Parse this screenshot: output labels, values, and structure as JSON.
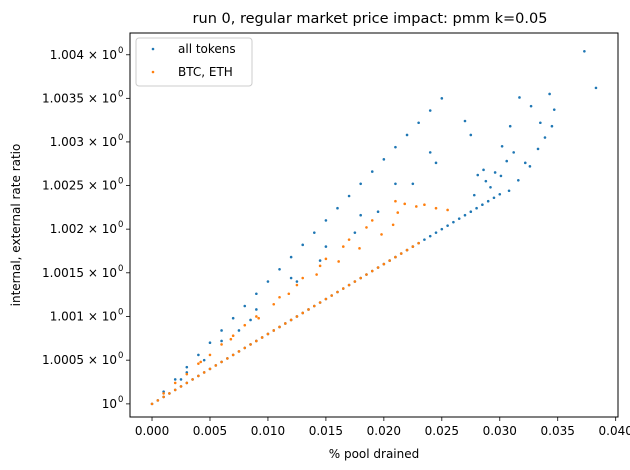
{
  "chart_data": {
    "type": "scatter",
    "title": "run 0, regular market price impact: pmm k=0.05",
    "xlabel": "% pool drained",
    "ylabel": "internal, external rate ratio",
    "xlim": [
      -0.0019,
      0.0402
    ],
    "ylim": [
      0.99985,
      1.00425
    ],
    "yscale": "log",
    "x_ticks": [
      {
        "value": 0.0,
        "label": "0.000"
      },
      {
        "value": 0.005,
        "label": "0.005"
      },
      {
        "value": 0.01,
        "label": "0.010"
      },
      {
        "value": 0.015,
        "label": "0.015"
      },
      {
        "value": 0.02,
        "label": "0.020"
      },
      {
        "value": 0.025,
        "label": "0.025"
      },
      {
        "value": 0.03,
        "label": "0.030"
      },
      {
        "value": 0.035,
        "label": "0.035"
      },
      {
        "value": 0.04,
        "label": "0.040"
      }
    ],
    "y_ticks": [
      {
        "value": 1.0,
        "mantissa": "10",
        "exp": "0"
      },
      {
        "value": 1.0005,
        "mantissa": "1.0005 × 10",
        "exp": "0"
      },
      {
        "value": 1.001,
        "mantissa": "1.001 × 10",
        "exp": "0"
      },
      {
        "value": 1.0015,
        "mantissa": "1.0015 × 10",
        "exp": "0"
      },
      {
        "value": 1.002,
        "mantissa": "1.002 × 10",
        "exp": "0"
      },
      {
        "value": 1.0025,
        "mantissa": "1.0025 × 10",
        "exp": "0"
      },
      {
        "value": 1.003,
        "mantissa": "1.003 × 10",
        "exp": "0"
      },
      {
        "value": 1.0035,
        "mantissa": "1.0035 × 10",
        "exp": "0"
      },
      {
        "value": 1.004,
        "mantissa": "1.004 × 10",
        "exp": "0"
      }
    ],
    "grid": false,
    "legend_position": "top-left",
    "series": [
      {
        "name": "all tokens",
        "color": "#1f77b4",
        "points": [
          [
            0.0,
            1.0
          ],
          [
            0.0005,
            1.00004
          ],
          [
            0.001,
            1.00008
          ],
          [
            0.0015,
            1.00012
          ],
          [
            0.002,
            1.00016
          ],
          [
            0.0025,
            1.0002
          ],
          [
            0.003,
            1.00024
          ],
          [
            0.0035,
            1.00028
          ],
          [
            0.004,
            1.00032
          ],
          [
            0.0045,
            1.00036
          ],
          [
            0.005,
            1.0004
          ],
          [
            0.0055,
            1.00044
          ],
          [
            0.006,
            1.00048
          ],
          [
            0.0065,
            1.00052
          ],
          [
            0.007,
            1.00056
          ],
          [
            0.0075,
            1.0006
          ],
          [
            0.008,
            1.00064
          ],
          [
            0.0085,
            1.00068
          ],
          [
            0.009,
            1.00072
          ],
          [
            0.0095,
            1.00076
          ],
          [
            0.01,
            1.0008
          ],
          [
            0.0105,
            1.00084
          ],
          [
            0.011,
            1.00088
          ],
          [
            0.0115,
            1.00092
          ],
          [
            0.012,
            1.00096
          ],
          [
            0.0125,
            1.001
          ],
          [
            0.013,
            1.00104
          ],
          [
            0.0135,
            1.00108
          ],
          [
            0.014,
            1.00112
          ],
          [
            0.0145,
            1.00116
          ],
          [
            0.015,
            1.0012
          ],
          [
            0.0155,
            1.00124
          ],
          [
            0.016,
            1.00128
          ],
          [
            0.0165,
            1.00132
          ],
          [
            0.017,
            1.00136
          ],
          [
            0.0175,
            1.0014
          ],
          [
            0.018,
            1.00144
          ],
          [
            0.0185,
            1.00148
          ],
          [
            0.019,
            1.00152
          ],
          [
            0.0195,
            1.00156
          ],
          [
            0.02,
            1.0016
          ],
          [
            0.0205,
            1.00164
          ],
          [
            0.021,
            1.00168
          ],
          [
            0.0215,
            1.00172
          ],
          [
            0.022,
            1.00176
          ],
          [
            0.0225,
            1.0018
          ],
          [
            0.023,
            1.00184
          ],
          [
            0.0235,
            1.00188
          ],
          [
            0.024,
            1.00192
          ],
          [
            0.0245,
            1.00196
          ],
          [
            0.025,
            1.002
          ],
          [
            0.0255,
            1.00204
          ],
          [
            0.026,
            1.00208
          ],
          [
            0.0265,
            1.00212
          ],
          [
            0.027,
            1.00216
          ],
          [
            0.0275,
            1.0022
          ],
          [
            0.028,
            1.00224
          ],
          [
            0.0285,
            1.00228
          ],
          [
            0.029,
            1.00232
          ],
          [
            0.0295,
            1.00236
          ],
          [
            0.03,
            1.0024
          ],
          [
            0.001,
            1.00014
          ],
          [
            0.002,
            1.00028
          ],
          [
            0.003,
            1.00042
          ],
          [
            0.004,
            1.00056
          ],
          [
            0.005,
            1.0007
          ],
          [
            0.006,
            1.00084
          ],
          [
            0.007,
            1.00098
          ],
          [
            0.008,
            1.00112
          ],
          [
            0.009,
            1.00126
          ],
          [
            0.01,
            1.0014
          ],
          [
            0.011,
            1.00154
          ],
          [
            0.012,
            1.00168
          ],
          [
            0.013,
            1.00182
          ],
          [
            0.014,
            1.00196
          ],
          [
            0.015,
            1.0021
          ],
          [
            0.016,
            1.00224
          ],
          [
            0.017,
            1.00238
          ],
          [
            0.018,
            1.00252
          ],
          [
            0.019,
            1.00266
          ],
          [
            0.02,
            1.0028
          ],
          [
            0.021,
            1.00294
          ],
          [
            0.022,
            1.00308
          ],
          [
            0.023,
            1.00322
          ],
          [
            0.024,
            1.00336
          ],
          [
            0.025,
            1.0035
          ],
          [
            0.003,
            1.00036
          ],
          [
            0.006,
            1.00072
          ],
          [
            0.009,
            1.00108
          ],
          [
            0.012,
            1.00144
          ],
          [
            0.015,
            1.0018
          ],
          [
            0.018,
            1.00216
          ],
          [
            0.021,
            1.00252
          ],
          [
            0.024,
            1.00288
          ],
          [
            0.027,
            1.00324
          ],
          [
            0.0025,
            1.00028
          ],
          [
            0.0075,
            1.00084
          ],
          [
            0.0125,
            1.0014
          ],
          [
            0.0175,
            1.00196
          ],
          [
            0.0225,
            1.00252
          ],
          [
            0.0275,
            1.00308
          ],
          [
            0.0045,
            1.0005
          ],
          [
            0.0085,
            1.00096
          ],
          [
            0.0145,
            1.00164
          ],
          [
            0.0195,
            1.0022
          ],
          [
            0.0245,
            1.00276
          ],
          [
            0.0373,
            1.00404
          ],
          [
            0.0383,
            1.00362
          ],
          [
            0.0347,
            1.00337
          ],
          [
            0.0343,
            1.00355
          ],
          [
            0.0317,
            1.00351
          ],
          [
            0.0327,
            1.00341
          ],
          [
            0.0335,
            1.00322
          ],
          [
            0.0345,
            1.00318
          ],
          [
            0.0309,
            1.00318
          ],
          [
            0.0302,
            1.00295
          ],
          [
            0.0312,
            1.00288
          ],
          [
            0.0322,
            1.00276
          ],
          [
            0.0326,
            1.00272
          ],
          [
            0.0296,
            1.00265
          ],
          [
            0.0306,
            1.00278
          ],
          [
            0.0288,
            1.00255
          ],
          [
            0.0292,
            1.00248
          ],
          [
            0.0301,
            1.00261
          ],
          [
            0.0286,
            1.00268
          ],
          [
            0.0281,
            1.00262
          ],
          [
            0.0278,
            1.00239
          ],
          [
            0.0308,
            1.00244
          ],
          [
            0.0316,
            1.00256
          ],
          [
            0.0333,
            1.00292
          ],
          [
            0.0339,
            1.00305
          ]
        ]
      },
      {
        "name": "BTC, ETH",
        "color": "#ff7f0e",
        "points": [
          [
            0.0,
            1.0
          ],
          [
            0.0005,
            1.00004
          ],
          [
            0.001,
            1.00008
          ],
          [
            0.0015,
            1.00012
          ],
          [
            0.002,
            1.00016
          ],
          [
            0.0025,
            1.0002
          ],
          [
            0.003,
            1.00024
          ],
          [
            0.0035,
            1.00028
          ],
          [
            0.004,
            1.00032
          ],
          [
            0.0045,
            1.00036
          ],
          [
            0.005,
            1.0004
          ],
          [
            0.0055,
            1.00044
          ],
          [
            0.006,
            1.00048
          ],
          [
            0.0065,
            1.00052
          ],
          [
            0.007,
            1.00056
          ],
          [
            0.0075,
            1.0006
          ],
          [
            0.008,
            1.00064
          ],
          [
            0.0085,
            1.00068
          ],
          [
            0.009,
            1.00072
          ],
          [
            0.0095,
            1.00076
          ],
          [
            0.01,
            1.0008
          ],
          [
            0.0105,
            1.00084
          ],
          [
            0.011,
            1.00088
          ],
          [
            0.0115,
            1.00092
          ],
          [
            0.012,
            1.00096
          ],
          [
            0.0125,
            1.001
          ],
          [
            0.013,
            1.00104
          ],
          [
            0.0135,
            1.00108
          ],
          [
            0.014,
            1.00112
          ],
          [
            0.0145,
            1.00116
          ],
          [
            0.015,
            1.0012
          ],
          [
            0.0155,
            1.00124
          ],
          [
            0.016,
            1.00128
          ],
          [
            0.0165,
            1.00132
          ],
          [
            0.017,
            1.00136
          ],
          [
            0.0175,
            1.0014
          ],
          [
            0.018,
            1.00144
          ],
          [
            0.0185,
            1.00148
          ],
          [
            0.019,
            1.00152
          ],
          [
            0.0195,
            1.00156
          ],
          [
            0.02,
            1.0016
          ],
          [
            0.0205,
            1.00164
          ],
          [
            0.021,
            1.00168
          ],
          [
            0.0215,
            1.00172
          ],
          [
            0.022,
            1.00176
          ],
          [
            0.0225,
            1.0018
          ],
          [
            0.023,
            1.00184
          ],
          [
            0.001,
            1.00012
          ],
          [
            0.003,
            1.00034
          ],
          [
            0.005,
            1.00056
          ],
          [
            0.007,
            1.00078
          ],
          [
            0.009,
            1.001
          ],
          [
            0.011,
            1.00122
          ],
          [
            0.013,
            1.00144
          ],
          [
            0.015,
            1.00166
          ],
          [
            0.017,
            1.00188
          ],
          [
            0.019,
            1.0021
          ],
          [
            0.021,
            1.00232
          ],
          [
            0.002,
            1.00024
          ],
          [
            0.004,
            1.00046
          ],
          [
            0.006,
            1.00068
          ],
          [
            0.008,
            1.0009
          ],
          [
            0.0105,
            1.00114
          ],
          [
            0.0125,
            1.00136
          ],
          [
            0.0145,
            1.00158
          ],
          [
            0.0165,
            1.0018
          ],
          [
            0.0185,
            1.00202
          ],
          [
            0.0235,
            1.00228
          ],
          [
            0.0245,
            1.00224
          ],
          [
            0.0255,
            1.00222
          ],
          [
            0.0218,
            1.00229
          ],
          [
            0.0228,
            1.00226
          ],
          [
            0.0208,
            1.00205
          ],
          [
            0.0212,
            1.00219
          ],
          [
            0.0198,
            1.00194
          ],
          [
            0.0179,
            1.00178
          ],
          [
            0.0161,
            1.00163
          ],
          [
            0.0142,
            1.00148
          ],
          [
            0.0118,
            1.00126
          ],
          [
            0.0092,
            1.00098
          ],
          [
            0.0068,
            1.00074
          ],
          [
            0.0042,
            1.00048
          ]
        ]
      }
    ]
  }
}
